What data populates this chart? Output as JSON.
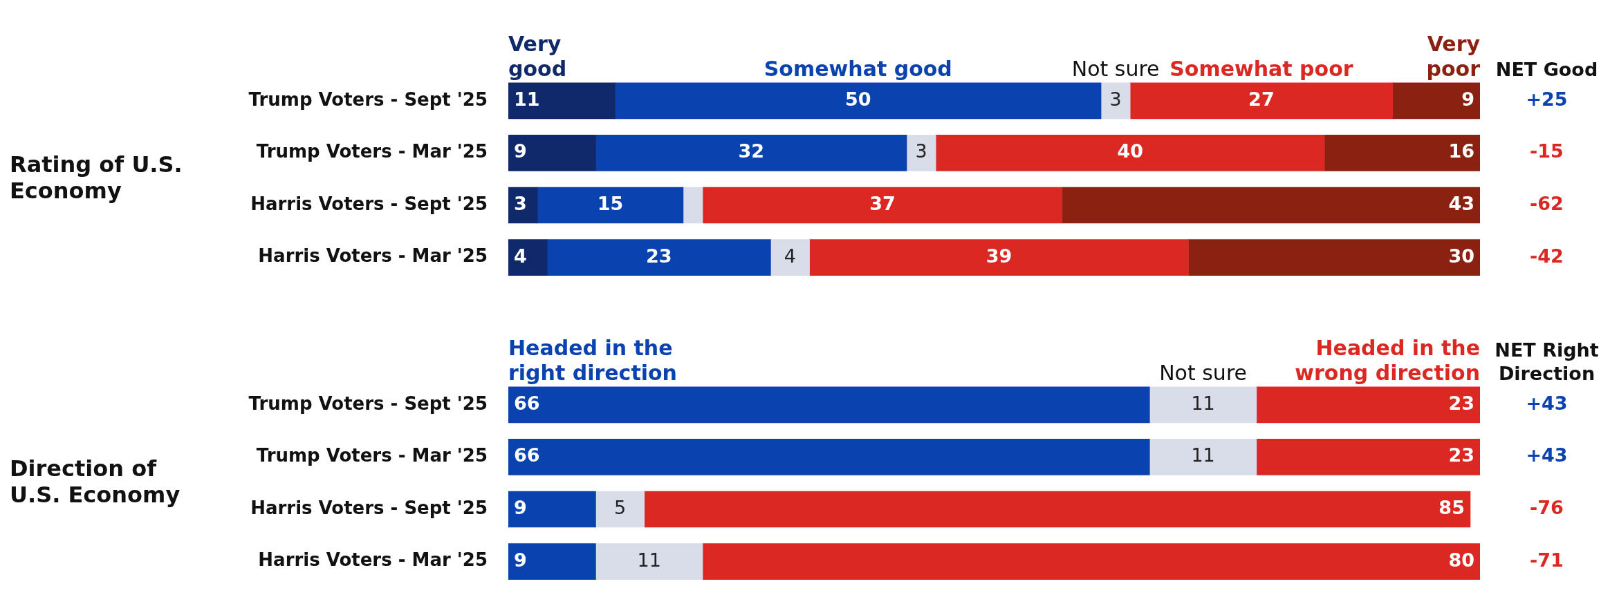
{
  "chart_data": [
    {
      "type": "bar",
      "orientation": "horizontal",
      "stacked": true,
      "title": "Rating of U.S. Economy",
      "legend": "top",
      "data_labels": true,
      "categories": [
        "Trump Voters - Sept '25",
        "Trump Voters - Mar '25",
        "Harris Voters - Sept '25",
        "Harris Voters - Mar '25"
      ],
      "series": [
        {
          "name": "Very good",
          "color": "#10296a",
          "values": [
            11,
            9,
            3,
            4
          ]
        },
        {
          "name": "Somewhat good",
          "color": "#0a43b0",
          "values": [
            50,
            32,
            15,
            23
          ]
        },
        {
          "name": "Not sure",
          "color": "#d9dde9",
          "values": [
            3,
            3,
            2,
            4
          ],
          "value_labels": [
            "3",
            "3",
            null,
            "4"
          ]
        },
        {
          "name": "Somewhat poor",
          "color": "#dc2823",
          "values": [
            27,
            40,
            37,
            39
          ]
        },
        {
          "name": "Very poor",
          "color": "#8b2211",
          "values": [
            9,
            16,
            43,
            30
          ]
        }
      ],
      "annotations": [
        "NET Good",
        "+25",
        "-15",
        "-62",
        "-42"
      ]
    },
    {
      "type": "bar",
      "orientation": "horizontal",
      "stacked": true,
      "title": "Direction of U.S. Economy",
      "legend": "top",
      "data_labels": true,
      "categories": [
        "Trump Voters - Sept '25",
        "Trump Voters - Mar '25",
        "Harris Voters - Sept '25",
        "Harris Voters - Mar '25"
      ],
      "series": [
        {
          "name": "Headed in the right direction",
          "color": "#0a43b0",
          "values": [
            66,
            66,
            9,
            9
          ]
        },
        {
          "name": "Not sure",
          "color": "#d9dde9",
          "values": [
            11,
            11,
            5,
            11
          ]
        },
        {
          "name": "Headed in the wrong direction",
          "color": "#dc2823",
          "values": [
            23,
            23,
            85,
            80
          ]
        }
      ],
      "annotations": [
        "NET Right Direction",
        "+43",
        "+43",
        "-76",
        "-71"
      ]
    }
  ]
}
